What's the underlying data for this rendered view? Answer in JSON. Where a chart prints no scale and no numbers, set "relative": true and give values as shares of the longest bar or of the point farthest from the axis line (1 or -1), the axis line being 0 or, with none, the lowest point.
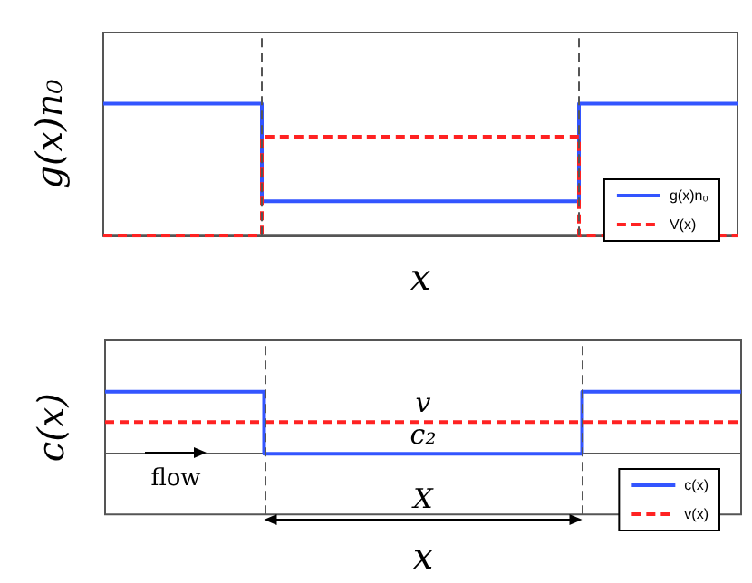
{
  "chart_data": [
    {
      "type": "step",
      "xlabel": "x",
      "ylabel": "g(x)n₀",
      "relative": true,
      "legend": "bottom right",
      "marker": "none",
      "grid": false,
      "categories": [
        null,
        null,
        null,
        null,
        null
      ],
      "series": [
        {
          "name": "g(x)n₀",
          "color": "#3355ff",
          "values": [
            1,
            0.26,
            0.26,
            1,
            1
          ],
          "line_style": "solid"
        },
        {
          "name": "V(x)",
          "color": "#ff2222",
          "values": [
            0,
            0.75,
            0.75,
            0,
            0
          ],
          "line_style": "dashed"
        }
      ]
    },
    {
      "type": "step",
      "xlabel": "x",
      "ylabel": "c(x)",
      "relative": true,
      "legend": "bottom right",
      "marker": "none",
      "grid": false,
      "categories": [
        null,
        null,
        null,
        null,
        null
      ],
      "series": [
        {
          "name": "c(x)",
          "color": "#3355ff",
          "values": [
            1,
            0,
            0,
            1,
            1
          ],
          "line_style": "solid"
        },
        {
          "name": "v(x)",
          "color": "#ff2222",
          "values": [
            0.51,
            0.51,
            0.51,
            0.51,
            0.51
          ],
          "line_style": "dashed"
        }
      ],
      "annotations": [
        "v",
        "c₂",
        "X",
        "flow"
      ]
    }
  ]
}
